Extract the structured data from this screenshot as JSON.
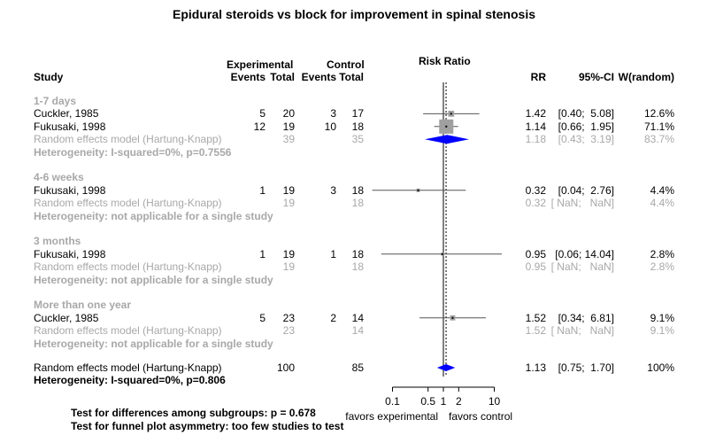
{
  "chart_data": {
    "type": "forest",
    "title": "Epidural steroids vs block for improvement in spinal stenosis",
    "header": {
      "experimental_group": "Experimental",
      "control_group": "Control",
      "study": "Study",
      "events": "Events",
      "total": "Total",
      "plot_title": "Risk Ratio",
      "rr": "RR",
      "ci": "95%-CI",
      "weight": "W(random)"
    },
    "x_axis": {
      "scale": "log",
      "ticks": [
        "0.1",
        "0.5",
        "1",
        "2",
        "10"
      ],
      "tick_values": [
        0.1,
        0.5,
        1,
        2,
        10
      ],
      "range": [
        0.04,
        14.04
      ],
      "reference_line": 1,
      "left_label": "favors experimental",
      "right_label": "favors control"
    },
    "overall_dashed_line": 1.13,
    "subgroups": [
      {
        "name": "1-7 days",
        "studies": [
          {
            "study": "Cuckler, 1985",
            "exp_events": "5",
            "exp_total": "20",
            "ctl_events": "3",
            "ctl_total": "17",
            "rr": 1.42,
            "lo": 0.4,
            "hi": 5.08,
            "rr_text": "1.42",
            "ci_text": "[0.40;  5.08]",
            "w_text": "12.6%",
            "weight": 12.6
          },
          {
            "study": "Fukusaki, 1998",
            "exp_events": "12",
            "exp_total": "19",
            "ctl_events": "10",
            "ctl_total": "18",
            "rr": 1.14,
            "lo": 0.66,
            "hi": 1.95,
            "rr_text": "1.14",
            "ci_text": "[0.66;  1.95]",
            "w_text": "71.1%",
            "weight": 71.1
          }
        ],
        "pooled": {
          "label": "Random effects model (Hartung-Knapp)",
          "exp_total": "39",
          "ctl_total": "35",
          "rr": 1.18,
          "lo": 0.43,
          "hi": 3.19,
          "rr_text": "1.18",
          "ci_text": "[0.43;  3.19]",
          "w_text": "83.7%",
          "show_diamond": true
        },
        "heterogeneity": "Heterogeneity: I-squared=0%, p=0.7556"
      },
      {
        "name": "4-6 weeks",
        "studies": [
          {
            "study": "Fukusaki, 1998",
            "exp_events": "1",
            "exp_total": "19",
            "ctl_events": "3",
            "ctl_total": "18",
            "rr": 0.32,
            "lo": 0.04,
            "hi": 2.76,
            "rr_text": "0.32",
            "ci_text": "[0.04;  2.76]",
            "w_text": "4.4%",
            "weight": 4.4
          }
        ],
        "pooled": {
          "label": "Random effects model (Hartung-Knapp)",
          "exp_total": "19",
          "ctl_total": "18",
          "rr": 0.32,
          "lo": null,
          "hi": null,
          "rr_text": "0.32",
          "ci_text": "[ NaN;   NaN]",
          "w_text": "4.4%",
          "show_diamond": false
        },
        "heterogeneity": "Heterogeneity: not applicable for a single study"
      },
      {
        "name": "3 months",
        "studies": [
          {
            "study": "Fukusaki, 1998",
            "exp_events": "1",
            "exp_total": "19",
            "ctl_events": "1",
            "ctl_total": "18",
            "rr": 0.95,
            "lo": 0.06,
            "hi": 14.04,
            "rr_text": "0.95",
            "ci_text": "[0.06; 14.04]",
            "w_text": "2.8%",
            "weight": 2.8
          }
        ],
        "pooled": {
          "label": "Random effects model (Hartung-Knapp)",
          "exp_total": "19",
          "ctl_total": "18",
          "rr": 0.95,
          "lo": null,
          "hi": null,
          "rr_text": "0.95",
          "ci_text": "[ NaN;   NaN]",
          "w_text": "2.8%",
          "show_diamond": false
        },
        "heterogeneity": "Heterogeneity: not applicable for a single study"
      },
      {
        "name": "More than one year",
        "studies": [
          {
            "study": "Cuckler, 1985",
            "exp_events": "5",
            "exp_total": "23",
            "ctl_events": "2",
            "ctl_total": "14",
            "rr": 1.52,
            "lo": 0.34,
            "hi": 6.81,
            "rr_text": "1.52",
            "ci_text": "[0.34;  6.81]",
            "w_text": "9.1%",
            "weight": 9.1
          }
        ],
        "pooled": {
          "label": "Random effects model (Hartung-Knapp)",
          "exp_total": "23",
          "ctl_total": "14",
          "rr": 1.52,
          "lo": null,
          "hi": null,
          "rr_text": "1.52",
          "ci_text": "[ NaN;   NaN]",
          "w_text": "9.1%",
          "show_diamond": false
        },
        "heterogeneity": "Heterogeneity: not applicable for a single study"
      }
    ],
    "overall": {
      "label": "Random effects model (Hartung-Knapp)",
      "exp_total": "100",
      "ctl_total": "85",
      "rr": 1.13,
      "lo": 0.75,
      "hi": 1.7,
      "rr_text": "1.13",
      "ci_text": "[0.75;  1.70]",
      "w_text": "100%"
    },
    "overall_heterogeneity": "Heterogeneity: I-squared=0%, p=0.806",
    "footer": {
      "subgroup_test": "Test for differences among subgroups: p = 0.678",
      "funnel_test": "Test for funnel plot asymmetry: too few studies to test"
    },
    "colors": {
      "diamond": "#0000ff",
      "grey_text": "#a8a8a8",
      "square": "#a0a0a0",
      "lines": "#000000"
    }
  }
}
